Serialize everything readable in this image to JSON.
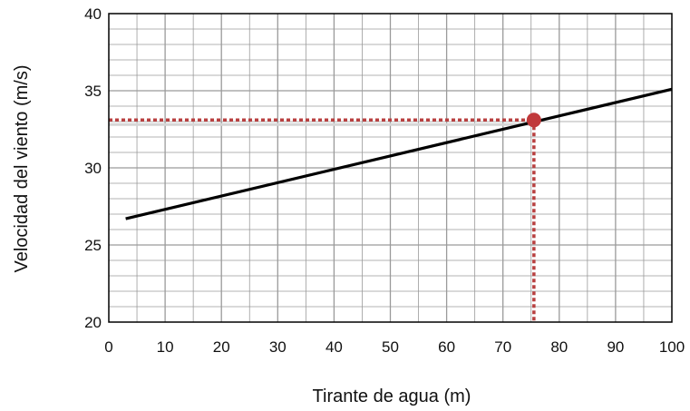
{
  "chart_data": {
    "type": "line",
    "xlabel": "Tirante de agua (m)",
    "ylabel": "Velocidad del viento (m/s)",
    "xlim": [
      0,
      100
    ],
    "ylim": [
      20,
      40
    ],
    "x_ticks": [
      "0",
      "10",
      "20",
      "30",
      "40",
      "50",
      "60",
      "70",
      "80",
      "90",
      "100"
    ],
    "y_ticks": [
      "20",
      "25",
      "30",
      "35",
      "40"
    ],
    "x_major_step": 10,
    "x_minor_step": 5,
    "y_major_step": 5,
    "y_minor_step": 1,
    "grid": true,
    "series": [
      {
        "x": [
          3,
          100
        ],
        "y": [
          26.7,
          35.1
        ]
      }
    ],
    "highlight": {
      "x": 75.5,
      "y": 33.1
    },
    "colors": {
      "line": "#000000",
      "highlight": "#c0393b",
      "guide": "#b84040",
      "guide_shadow": "#d6d6d6",
      "grid": "#9a9a9a",
      "frame": "#000000"
    }
  }
}
